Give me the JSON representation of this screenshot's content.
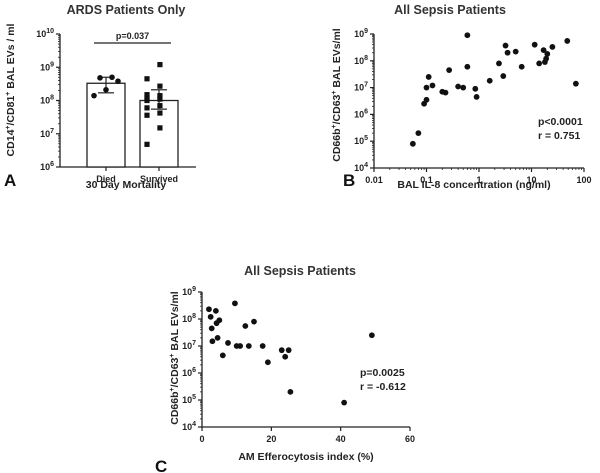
{
  "chart_data": [
    {
      "id": "A",
      "type": "bar",
      "panel_label": "A",
      "title": "ARDS Patients Only",
      "xlabel": "30 Day Mortality",
      "ylabel": "CD14+/CD81+ BAL EVs / ml",
      "yscale": "log",
      "ylim": [
        1000000,
        10000000000
      ],
      "yticks": [
        1000000,
        10000000,
        100000000,
        1000000000,
        10000000000
      ],
      "categories": [
        "Died",
        "Survived"
      ],
      "bars": [
        {
          "category": "Died",
          "value": 330000000,
          "error_low": 170000000,
          "error_high": 500000000,
          "points": [
            140000000,
            210000000,
            380000000,
            480000000,
            500000000
          ],
          "marker": "circle"
        },
        {
          "category": "Survived",
          "value": 100000000,
          "error_low": 55000000,
          "error_high": 210000000,
          "points": [
            4800000,
            15000000,
            36000000,
            42000000,
            60000000,
            70000000,
            100000000,
            110000000,
            120000000,
            140000000,
            150000000,
            270000000,
            450000000,
            1200000000
          ],
          "marker": "square"
        }
      ],
      "annotation": {
        "text": "p=0.037",
        "between": [
          "Died",
          "Survived"
        ]
      }
    },
    {
      "id": "B",
      "type": "scatter",
      "panel_label": "B",
      "title": "All Sepsis Patients",
      "xlabel": "BAL IL-8 concentration (ng/ml)",
      "ylabel": "CD66b+/CD63+ BAL EVs/ml",
      "xscale": "log",
      "yscale": "log",
      "xlim": [
        0.01,
        100
      ],
      "ylim": [
        10000,
        1000000000
      ],
      "xticks": [
        0.01,
        0.1,
        1,
        10,
        100
      ],
      "xtick_labels": [
        "0.01",
        "0.1",
        "1",
        "10",
        "100"
      ],
      "yticks": [
        10000,
        100000,
        1000000,
        10000000,
        100000000,
        1000000000
      ],
      "points": [
        {
          "x": 0.055,
          "y": 80000
        },
        {
          "x": 0.07,
          "y": 200000
        },
        {
          "x": 0.09,
          "y": 2500000
        },
        {
          "x": 0.1,
          "y": 3500000
        },
        {
          "x": 0.1,
          "y": 10000000
        },
        {
          "x": 0.11,
          "y": 25000000
        },
        {
          "x": 0.13,
          "y": 12000000
        },
        {
          "x": 0.2,
          "y": 7000000
        },
        {
          "x": 0.23,
          "y": 6500000
        },
        {
          "x": 0.27,
          "y": 45000000
        },
        {
          "x": 0.4,
          "y": 11000000
        },
        {
          "x": 0.5,
          "y": 10000000
        },
        {
          "x": 0.6,
          "y": 900000000
        },
        {
          "x": 0.6,
          "y": 60000000
        },
        {
          "x": 0.85,
          "y": 9000000
        },
        {
          "x": 0.9,
          "y": 4500000
        },
        {
          "x": 1.6,
          "y": 18000000
        },
        {
          "x": 2.4,
          "y": 80000000
        },
        {
          "x": 2.9,
          "y": 27000000
        },
        {
          "x": 3.2,
          "y": 370000000
        },
        {
          "x": 3.5,
          "y": 200000000
        },
        {
          "x": 5.0,
          "y": 220000000
        },
        {
          "x": 6.5,
          "y": 60000000
        },
        {
          "x": 11.5,
          "y": 400000000
        },
        {
          "x": 14,
          "y": 80000000
        },
        {
          "x": 17,
          "y": 250000000
        },
        {
          "x": 18,
          "y": 90000000
        },
        {
          "x": 19,
          "y": 120000000
        },
        {
          "x": 20,
          "y": 180000000
        },
        {
          "x": 25,
          "y": 330000000
        },
        {
          "x": 48,
          "y": 550000000
        },
        {
          "x": 70,
          "y": 14000000
        }
      ],
      "stats": {
        "p": "p<0.0001",
        "r": "r = 0.751"
      }
    },
    {
      "id": "C",
      "type": "scatter",
      "panel_label": "C",
      "title": "All Sepsis Patients",
      "xlabel": "AM Efferocytosis index (%)",
      "ylabel": "CD66b+/CD63+ BAL EVs/ml",
      "xscale": "linear",
      "yscale": "log",
      "xlim": [
        0,
        60
      ],
      "ylim": [
        10000,
        1000000000
      ],
      "xticks": [
        0,
        20,
        40,
        60
      ],
      "yticks": [
        10000,
        100000,
        1000000,
        10000000,
        100000000,
        1000000000
      ],
      "points": [
        {
          "x": 2,
          "y": 230000000
        },
        {
          "x": 2.5,
          "y": 120000000
        },
        {
          "x": 2.8,
          "y": 45000000
        },
        {
          "x": 3,
          "y": 15000000
        },
        {
          "x": 4,
          "y": 200000000
        },
        {
          "x": 4.2,
          "y": 70000000
        },
        {
          "x": 4.5,
          "y": 20000000
        },
        {
          "x": 5,
          "y": 90000000
        },
        {
          "x": 6,
          "y": 4500000
        },
        {
          "x": 7.5,
          "y": 13000000
        },
        {
          "x": 9.5,
          "y": 380000000
        },
        {
          "x": 10,
          "y": 10000000
        },
        {
          "x": 11,
          "y": 10000000
        },
        {
          "x": 12.5,
          "y": 55000000
        },
        {
          "x": 13.5,
          "y": 10000000
        },
        {
          "x": 15,
          "y": 80000000
        },
        {
          "x": 17.5,
          "y": 10000000
        },
        {
          "x": 19,
          "y": 2500000
        },
        {
          "x": 23,
          "y": 7000000
        },
        {
          "x": 24,
          "y": 4000000
        },
        {
          "x": 25,
          "y": 7000000
        },
        {
          "x": 25.5,
          "y": 200000
        },
        {
          "x": 41,
          "y": 80000
        },
        {
          "x": 49,
          "y": 25000000
        }
      ],
      "stats": {
        "p": "p=0.0025",
        "r": "r = -0.612"
      }
    }
  ]
}
